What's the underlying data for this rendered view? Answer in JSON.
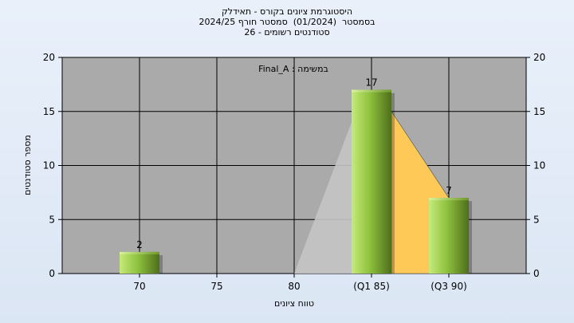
{
  "chart_data": {
    "type": "bar",
    "title_lines": [
      "היסטוגרמת ציונים בקורס - תאידלק",
      "בסמסטר  (01/2024)  סמסטר חורף 2024/25",
      "סטודנטים רשומים - 26"
    ],
    "annotation": "במשימה : Final_A",
    "xlabel": "טווח ציונים",
    "ylabel": "מספר סטודנטים",
    "ylim": [
      0,
      20
    ],
    "yticks": [
      0,
      5,
      10,
      15,
      20
    ],
    "categories": [
      "70",
      "75",
      "80",
      "(Q1 85)",
      "(Q3 90)"
    ],
    "values": [
      2,
      0,
      0,
      17,
      7
    ],
    "data_labels": [
      "2",
      "",
      "",
      "17",
      "7"
    ],
    "bar_color": "#8fc23e",
    "area_gray_color": "#c4c4c4",
    "area_orange_color": "#ffc957",
    "plot_background": "#aaaaaa",
    "grid": true
  }
}
